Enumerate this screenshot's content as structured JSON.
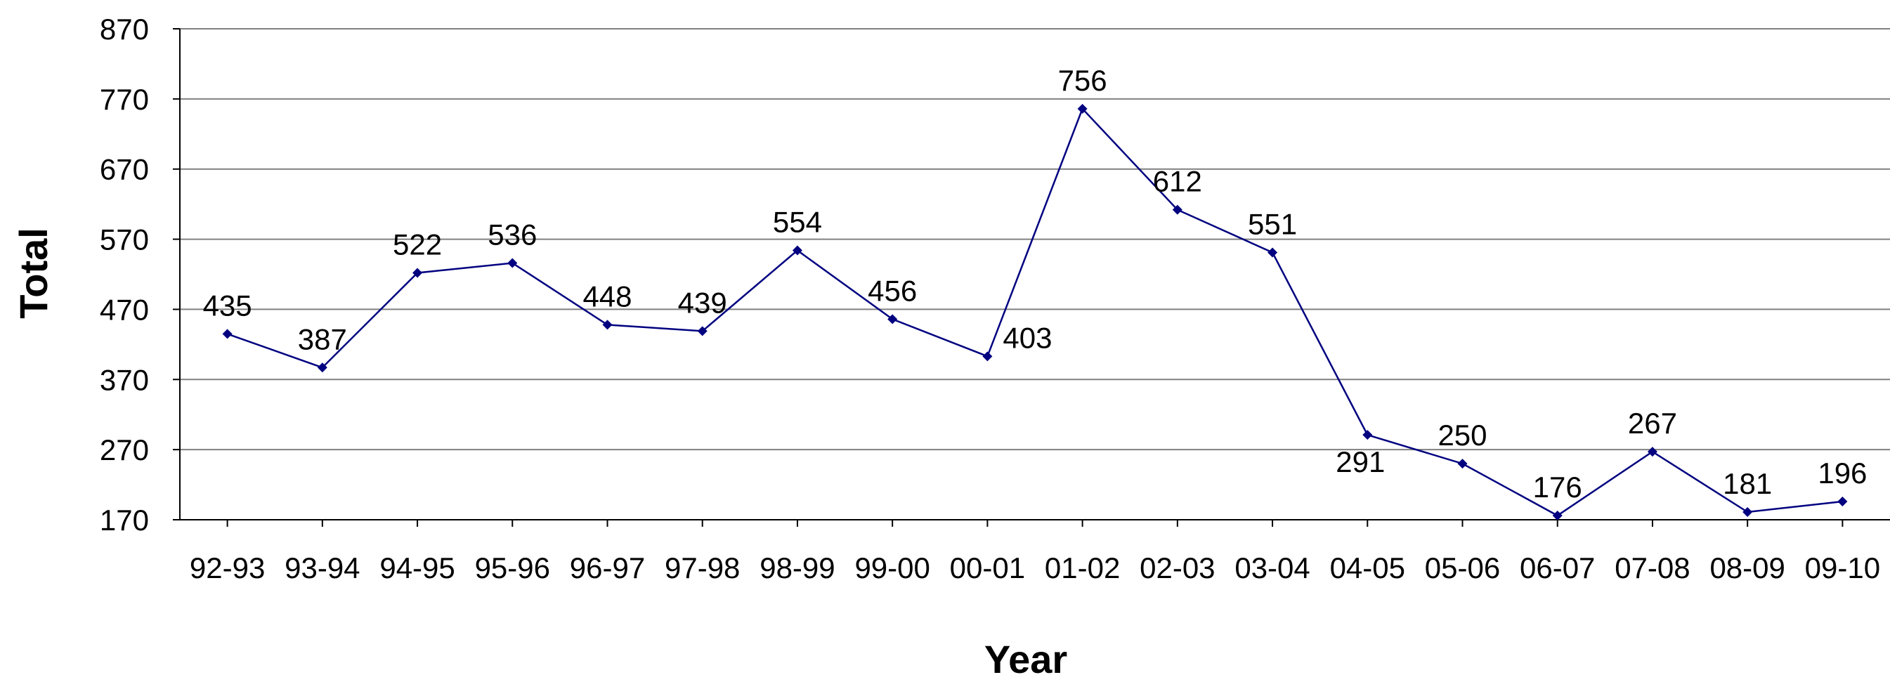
{
  "chart_data": {
    "type": "line",
    "xlabel": "Year",
    "ylabel": "Total",
    "ylim": [
      170,
      870
    ],
    "yticks": [
      170,
      270,
      370,
      470,
      570,
      670,
      770,
      870
    ],
    "grid": "horizontal",
    "legend": "none",
    "categories": [
      "92-93",
      "93-94",
      "94-95",
      "95-96",
      "96-97",
      "97-98",
      "98-99",
      "99-00",
      "00-01",
      "01-02",
      "02-03",
      "03-04",
      "04-05",
      "05-06",
      "06-07",
      "07-08",
      "08-09",
      "09-10"
    ],
    "series": [
      {
        "values": [
          435,
          387,
          522,
          536,
          448,
          439,
          554,
          456,
          403,
          756,
          612,
          551,
          291,
          250,
          176,
          267,
          181,
          196
        ],
        "color": "#000080"
      }
    ],
    "label_positions": [
      "above",
      "above",
      "above",
      "above",
      "above",
      "above",
      "above",
      "above",
      "right",
      "above",
      "above",
      "above",
      "below",
      "above",
      "above",
      "above",
      "above",
      "above"
    ]
  }
}
